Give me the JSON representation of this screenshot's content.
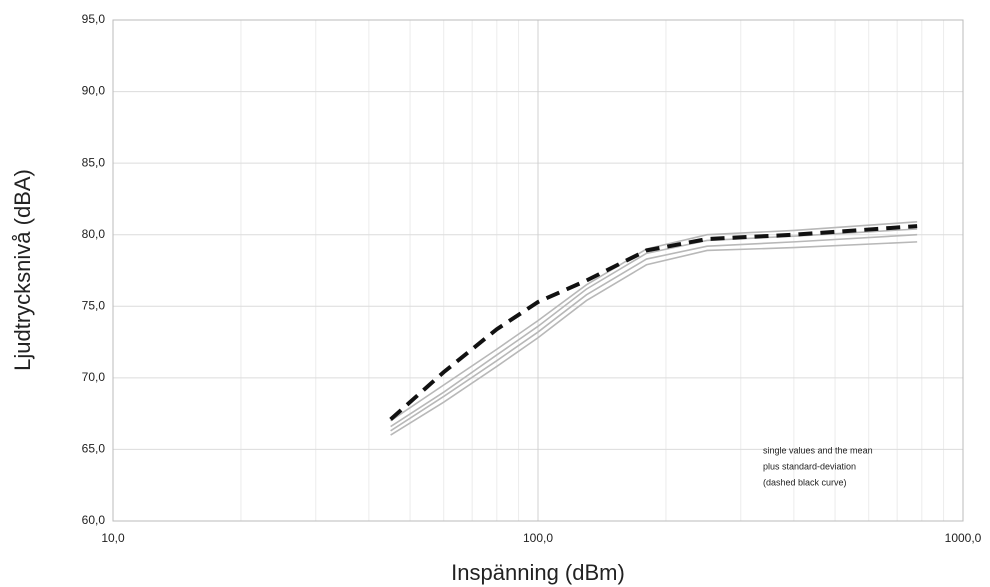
{
  "chart_data": {
    "type": "line",
    "x_label": "Inspänning (dBm)",
    "y_label": "Ljudtrycksnivå (dBA)",
    "x_scale": "log",
    "xlim": [
      10,
      1000
    ],
    "xticks": [
      {
        "value": 10,
        "label": "10,0"
      },
      {
        "value": 100,
        "label": "100,0"
      },
      {
        "value": 1000,
        "label": "1000,0"
      }
    ],
    "x_minor_ticks": [
      20,
      30,
      40,
      50,
      60,
      70,
      80,
      90,
      200,
      300,
      400,
      500,
      600,
      700,
      800,
      900
    ],
    "ylim": [
      60,
      95
    ],
    "yticks": [
      {
        "value": 60,
        "label": "60,0"
      },
      {
        "value": 65,
        "label": "65,0"
      },
      {
        "value": 70,
        "label": "70,0"
      },
      {
        "value": 75,
        "label": "75,0"
      },
      {
        "value": 80,
        "label": "80,0"
      },
      {
        "value": 85,
        "label": "85,0"
      },
      {
        "value": 90,
        "label": "90,0"
      },
      {
        "value": 95,
        "label": "95,0"
      }
    ],
    "grid": true,
    "x": [
      45,
      60,
      80,
      100,
      130,
      180,
      250,
      400,
      780
    ],
    "series": [
      {
        "color": "#b8b8b8",
        "style": "solid",
        "values": [
          67.0,
          69.5,
          72.0,
          74.0,
          76.5,
          79.0,
          80.0,
          80.3,
          80.9
        ]
      },
      {
        "color": "#b8b8b8",
        "style": "solid",
        "values": [
          66.6,
          69.0,
          71.6,
          73.6,
          76.2,
          78.7,
          79.6,
          79.9,
          80.4
        ]
      },
      {
        "color": "#b8b8b8",
        "style": "solid",
        "values": [
          66.3,
          68.7,
          71.2,
          73.2,
          75.8,
          78.3,
          79.2,
          79.5,
          80.0
        ]
      },
      {
        "color": "#b8b8b8",
        "style": "solid",
        "values": [
          66.0,
          68.3,
          70.8,
          72.8,
          75.4,
          77.9,
          78.9,
          79.1,
          79.5
        ]
      },
      {
        "color": "#111111",
        "style": "dashed",
        "values": [
          67.1,
          70.4,
          73.4,
          75.3,
          76.8,
          78.9,
          79.7,
          80.0,
          80.6
        ]
      }
    ],
    "annotation": [
      "single values and the mean",
      "plus standard-deviation",
      "(dashed black curve)"
    ]
  }
}
